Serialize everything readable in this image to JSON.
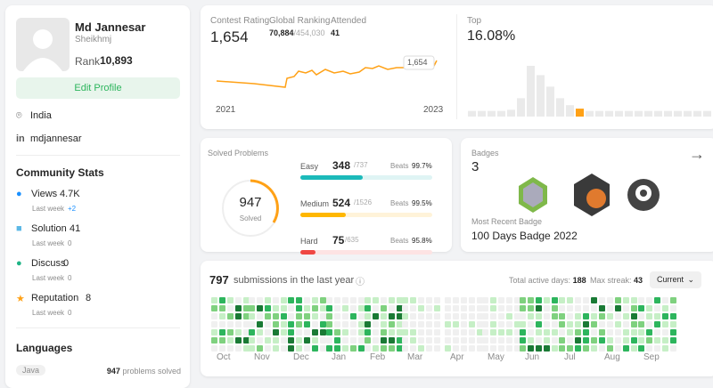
{
  "profile": {
    "name": "Md Jannesar",
    "username": "Sheikhmj",
    "rank_label": "Rank",
    "rank": "10,893",
    "edit": "Edit Profile",
    "location": "India",
    "handle": "mdjannesar"
  },
  "community": {
    "title": "Community Stats",
    "items": [
      {
        "label": "Views",
        "value": "4.7K",
        "sub": "Last week",
        "delta": "+2"
      },
      {
        "label": "Solution",
        "value": "41",
        "sub": "Last week",
        "delta": "0"
      },
      {
        "label": "Discuss",
        "value": "0",
        "sub": "Last week",
        "delta": "0"
      },
      {
        "label": "Reputation",
        "value": "8",
        "sub": "Last week",
        "delta": "0"
      }
    ]
  },
  "languages": {
    "title": "Languages",
    "items": [
      {
        "name": "Java",
        "count": "947",
        "suffix": "problems solved"
      }
    ]
  },
  "contest": {
    "rating_label": "Contest Rating",
    "rating": "1,654",
    "global_label": "Global Ranking",
    "global": "70,884",
    "global_total": "/454,030",
    "attended_label": "Attended",
    "attended": "41",
    "x_start": "2021",
    "x_end": "2023",
    "tooltip": "1,654"
  },
  "top": {
    "label": "Top",
    "value": "16.08%"
  },
  "solved": {
    "title": "Solved Problems",
    "total": "947",
    "total_label": "Solved",
    "rows": [
      {
        "level": "Easy",
        "count": "348",
        "of": "/737",
        "beats_label": "Beats",
        "beats": "99.7%"
      },
      {
        "level": "Medium",
        "count": "524",
        "of": "/1526",
        "beats_label": "Beats",
        "beats": "99.5%"
      },
      {
        "level": "Hard",
        "count": "75",
        "of": "/635",
        "beats_label": "Beats",
        "beats": "95.8%"
      }
    ]
  },
  "badges": {
    "title": "Badges",
    "count": "3",
    "recent_label": "Most Recent Badge",
    "recent": "100 Days Badge 2022"
  },
  "submissions": {
    "count": "797",
    "label": "submissions in the last year",
    "active_label": "Total active days:",
    "active": "188",
    "streak_label": "Max streak:",
    "streak": "43",
    "select": "Current",
    "months": [
      "Oct",
      "Nov",
      "Dec",
      "Jan",
      "Feb",
      "Mar",
      "Apr",
      "May",
      "Jun",
      "Jul",
      "Aug",
      "Sep"
    ]
  }
}
